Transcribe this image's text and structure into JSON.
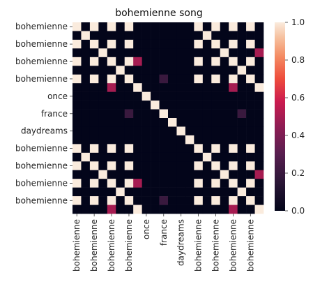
{
  "chart_data": {
    "type": "heatmap",
    "title": "bohemienne song",
    "row_labels": [
      "bohemienne",
      "",
      "bohemienne",
      "",
      "bohemienne",
      "",
      "bohemienne",
      "",
      "once",
      "",
      "france",
      "",
      "daydreams",
      "",
      "bohemienne",
      "",
      "bohemienne",
      "",
      "bohemienne",
      "",
      "bohemienne",
      ""
    ],
    "col_labels": [
      "bohemienne",
      "",
      "bohemienne",
      "",
      "bohemienne",
      "",
      "bohemienne",
      "",
      "once",
      "",
      "france",
      "",
      "daydreams",
      "",
      "bohemienne",
      "",
      "bohemienne",
      "",
      "bohemienne",
      "",
      "bohemienne",
      ""
    ],
    "x_ticks": [
      "bohemienne",
      "bohemienne",
      "bohemienne",
      "bohemienne",
      "once",
      "france",
      "daydreams",
      "bohemienne",
      "bohemienne",
      "bohemienne",
      "bohemienne"
    ],
    "y_ticks": [
      "bohemienne",
      "bohemienne",
      "bohemienne",
      "bohemienne",
      "once",
      "france",
      "daydreams",
      "bohemienne",
      "bohemienne",
      "bohemienne",
      "bohemienne"
    ],
    "colorbar": {
      "min": 0.0,
      "max": 1.0,
      "ticks": [
        "0.0",
        "0.2",
        "0.4",
        "0.6",
        "0.8",
        "1.0"
      ]
    },
    "matrix": [
      [
        1,
        0,
        1,
        0,
        1,
        0,
        1,
        0,
        0,
        0,
        0,
        0,
        0,
        0,
        1,
        0,
        1,
        0,
        1,
        0,
        1,
        0
      ],
      [
        0,
        1,
        0,
        0,
        0,
        0,
        0,
        0,
        0,
        0,
        0,
        0,
        0,
        0,
        0,
        1,
        0,
        0,
        0,
        0,
        0,
        0
      ],
      [
        1,
        0,
        1,
        0,
        1,
        0,
        1,
        0,
        0,
        0,
        0,
        0,
        0,
        0,
        1,
        0,
        1,
        0,
        1,
        0,
        1,
        0
      ],
      [
        0,
        0,
        0,
        1,
        0,
        0,
        0,
        0,
        0,
        0,
        0,
        0,
        0,
        0,
        0,
        0,
        0,
        1,
        0,
        0,
        0,
        0.5
      ],
      [
        1,
        0,
        1,
        0,
        1,
        0,
        1,
        0.5,
        0,
        0,
        0,
        0,
        0,
        0,
        1,
        0,
        1,
        0,
        1,
        0,
        1,
        0
      ],
      [
        0,
        0,
        0,
        0,
        0,
        1,
        0,
        0,
        0,
        0,
        0,
        0,
        0,
        0,
        0,
        0,
        0,
        0,
        0,
        1,
        0,
        0
      ],
      [
        1,
        0,
        1,
        0,
        1,
        0,
        1,
        0,
        0,
        0,
        0.2,
        0,
        0,
        0,
        1,
        0,
        1,
        0,
        1,
        0,
        1,
        0
      ],
      [
        0,
        0,
        0,
        0,
        0.5,
        0,
        0,
        1,
        0,
        0,
        0,
        0,
        0,
        0,
        0,
        0,
        0,
        0,
        0.5,
        0,
        0,
        1
      ],
      [
        0,
        0,
        0,
        0,
        0,
        0,
        0,
        0,
        1,
        0,
        0,
        0,
        0,
        0,
        0,
        0,
        0,
        0,
        0,
        0,
        0,
        0
      ],
      [
        0,
        0,
        0,
        0,
        0,
        0,
        0,
        0,
        0,
        1,
        0,
        0,
        0,
        0,
        0,
        0,
        0,
        0,
        0,
        0,
        0,
        0
      ],
      [
        0,
        0,
        0,
        0,
        0,
        0,
        0.2,
        0,
        0,
        0,
        1,
        0,
        0,
        0,
        0,
        0,
        0,
        0,
        0,
        0.2,
        0,
        0
      ],
      [
        0,
        0,
        0,
        0,
        0,
        0,
        0,
        0,
        0,
        0,
        0,
        1,
        0,
        0,
        0,
        0,
        0,
        0,
        0,
        0,
        0,
        0
      ],
      [
        0,
        0,
        0,
        0,
        0,
        0,
        0,
        0,
        0,
        0,
        0,
        0,
        1,
        0,
        0,
        0,
        0,
        0,
        0,
        0,
        0,
        0
      ],
      [
        0,
        0,
        0,
        0,
        0,
        0,
        0,
        0,
        0,
        0,
        0,
        0,
        0,
        1,
        0,
        0,
        0,
        0,
        0,
        0,
        0,
        0
      ],
      [
        1,
        0,
        1,
        0,
        1,
        0,
        1,
        0,
        0,
        0,
        0,
        0,
        0,
        0,
        1,
        0,
        1,
        0,
        1,
        0,
        1,
        0
      ],
      [
        0,
        1,
        0,
        0,
        0,
        0,
        0,
        0,
        0,
        0,
        0,
        0,
        0,
        0,
        0,
        1,
        0,
        0,
        0,
        0,
        0,
        0
      ],
      [
        1,
        0,
        1,
        0,
        1,
        0,
        1,
        0,
        0,
        0,
        0,
        0,
        0,
        0,
        1,
        0,
        1,
        0,
        1,
        0,
        1,
        0
      ],
      [
        0,
        0,
        0,
        1,
        0,
        0,
        0,
        0,
        0,
        0,
        0,
        0,
        0,
        0,
        0,
        0,
        0,
        1,
        0,
        0,
        0,
        0.5
      ],
      [
        1,
        0,
        1,
        0,
        1,
        0,
        1,
        0.5,
        0,
        0,
        0,
        0,
        0,
        0,
        1,
        0,
        1,
        0,
        1,
        0,
        1,
        0
      ],
      [
        0,
        0,
        0,
        0,
        0,
        1,
        0,
        0,
        0,
        0,
        0,
        0,
        0,
        0,
        0,
        0,
        0,
        0,
        0,
        1,
        0,
        0
      ],
      [
        1,
        0,
        1,
        0,
        1,
        0,
        1,
        0,
        0,
        0,
        0.2,
        0,
        0,
        0,
        1,
        0,
        1,
        0,
        1,
        0,
        1,
        0
      ],
      [
        0,
        0,
        0,
        0,
        0.5,
        0,
        0,
        1,
        0,
        0,
        0,
        0,
        0,
        0,
        0,
        0,
        0,
        0,
        0.5,
        0,
        0,
        1
      ]
    ]
  }
}
